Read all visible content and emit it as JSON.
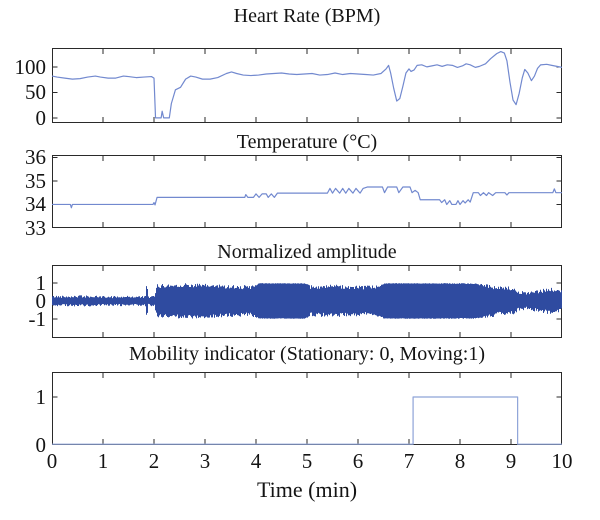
{
  "figure": {
    "xlabel": "Time (min)",
    "xlim": [
      0,
      10
    ],
    "x_ticks": [
      0,
      1,
      2,
      3,
      4,
      5,
      6,
      7,
      8,
      9,
      10
    ],
    "colors": {
      "background": "#ffffff",
      "axis": "#2a2a2a",
      "text": "#141414",
      "thin_line": "#7289cf",
      "mobility_line": "#8ea3d8",
      "dense_fill": "#2f4ba0"
    }
  },
  "chart_data": [
    {
      "id": "heart-rate",
      "type": "line",
      "title": "Heart Rate (BPM)",
      "ylim": [
        -10,
        137
      ],
      "yticks": [
        0,
        50,
        100
      ],
      "x": [
        0,
        0.1,
        0.25,
        0.4,
        0.55,
        0.7,
        0.85,
        0.95,
        1.1,
        1.25,
        1.4,
        1.5,
        1.65,
        1.8,
        1.95,
        2.0,
        2.03,
        2.14,
        2.16,
        2.19,
        2.3,
        2.34,
        2.42,
        2.52,
        2.62,
        2.72,
        2.82,
        2.95,
        3.1,
        3.25,
        3.42,
        3.52,
        3.62,
        3.75,
        3.9,
        4.05,
        4.2,
        4.35,
        4.5,
        4.65,
        4.8,
        4.95,
        5.1,
        5.25,
        5.4,
        5.55,
        5.7,
        5.85,
        6.0,
        6.15,
        6.3,
        6.45,
        6.55,
        6.6,
        6.64,
        6.7,
        6.76,
        6.82,
        6.88,
        6.94,
        7.0,
        7.04,
        7.1,
        7.16,
        7.25,
        7.35,
        7.45,
        7.55,
        7.65,
        7.75,
        7.85,
        7.95,
        8.05,
        8.12,
        8.2,
        8.3,
        8.38,
        8.5,
        8.6,
        8.72,
        8.8,
        8.87,
        8.92,
        8.98,
        9.04,
        9.1,
        9.16,
        9.22,
        9.27,
        9.33,
        9.4,
        9.46,
        9.52,
        9.58,
        9.7,
        9.8,
        9.9,
        10
      ],
      "y": [
        82,
        80,
        78,
        76,
        77,
        80,
        82,
        80,
        78,
        78,
        82,
        81,
        79,
        80,
        81,
        78,
        0,
        0,
        13,
        0,
        0,
        28,
        55,
        60,
        76,
        82,
        80,
        76,
        76,
        79,
        87,
        90,
        87,
        84,
        83,
        84,
        86,
        87,
        88,
        86,
        85,
        86,
        87,
        84,
        85,
        88,
        85,
        87,
        86,
        85,
        84,
        87,
        96,
        103,
        88,
        58,
        33,
        38,
        62,
        88,
        96,
        91,
        94,
        103,
        104,
        100,
        102,
        104,
        101,
        104,
        103,
        99,
        102,
        106,
        104,
        99,
        101,
        106,
        116,
        126,
        130,
        127,
        112,
        70,
        35,
        26,
        48,
        78,
        95,
        88,
        73,
        82,
        97,
        104,
        105,
        103,
        101,
        99
      ]
    },
    {
      "id": "temperature",
      "type": "line",
      "title": "Temperature (°C)",
      "ylim": [
        33,
        36.1
      ],
      "yticks": [
        33,
        34,
        35,
        36
      ],
      "x": [
        0,
        0.36,
        0.38,
        0.4,
        1.98,
        2.0,
        2.02,
        2.06,
        3.78,
        3.8,
        3.84,
        3.95,
        4.0,
        4.06,
        4.12,
        4.2,
        4.24,
        4.3,
        4.36,
        4.42,
        5.4,
        5.45,
        5.5,
        5.56,
        5.64,
        5.7,
        5.76,
        5.82,
        5.9,
        5.96,
        6.04,
        6.1,
        6.18,
        6.48,
        6.52,
        6.58,
        6.76,
        6.8,
        6.88,
        7.02,
        7.06,
        7.12,
        7.18,
        7.22,
        7.6,
        7.64,
        7.7,
        7.74,
        7.8,
        7.84,
        7.92,
        7.96,
        8.0,
        8.06,
        8.1,
        8.16,
        8.2,
        8.26,
        8.36,
        8.4,
        8.46,
        8.52,
        8.56,
        8.64,
        8.7,
        8.88,
        8.92,
        8.96,
        9.82,
        9.85,
        9.88,
        10
      ],
      "y": [
        34,
        34,
        33.86,
        34,
        34,
        34.08,
        33.98,
        34.3,
        34.3,
        34.42,
        34.3,
        34.3,
        34.45,
        34.3,
        34.45,
        34.45,
        34.3,
        34.45,
        34.3,
        34.48,
        34.48,
        34.68,
        34.48,
        34.68,
        34.48,
        34.68,
        34.48,
        34.68,
        34.48,
        34.68,
        34.48,
        34.68,
        34.74,
        34.74,
        34.5,
        34.74,
        34.74,
        34.5,
        34.74,
        34.74,
        34.5,
        34.6,
        34.5,
        34.2,
        34.2,
        34.08,
        34.2,
        34.0,
        34.16,
        34.0,
        34.0,
        34.16,
        34.0,
        34.16,
        34.06,
        34.2,
        34.1,
        34.5,
        34.5,
        34.38,
        34.5,
        34.38,
        34.5,
        34.38,
        34.5,
        34.5,
        34.4,
        34.5,
        34.5,
        34.66,
        34.5,
        34.5
      ]
    },
    {
      "id": "normalized-amplitude",
      "type": "dense",
      "title": "Normalized amplitude",
      "ylim": [
        -2.08,
        2.02
      ],
      "yticks": [
        -1,
        0,
        1
      ],
      "envelope": {
        "t": [
          0,
          0.5,
          1.0,
          1.5,
          1.82,
          1.85,
          1.88,
          2.0,
          2.05,
          2.6,
          3.2,
          3.9,
          4.05,
          4.95,
          5.05,
          5.6,
          6.1,
          6.4,
          6.5,
          7.5,
          8.3,
          8.6,
          9.0,
          9.15,
          9.3,
          9.55,
          9.75,
          9.9,
          10
        ],
        "amplitude": [
          0.3,
          0.33,
          0.28,
          0.3,
          0.28,
          1.0,
          0.28,
          0.3,
          0.95,
          1.0,
          0.95,
          0.88,
          1.0,
          1.0,
          0.88,
          0.92,
          0.85,
          0.9,
          1.0,
          1.0,
          1.0,
          0.92,
          0.8,
          0.6,
          0.5,
          0.65,
          0.75,
          0.7,
          0.62
        ],
        "solidness": [
          0.2,
          0.2,
          0.2,
          0.2,
          0.2,
          0.9,
          0.2,
          0.2,
          0.55,
          0.6,
          0.55,
          0.5,
          0.95,
          0.95,
          0.5,
          0.55,
          0.5,
          0.55,
          0.95,
          0.95,
          0.9,
          0.5,
          0.35,
          0.3,
          0.3,
          0.35,
          0.4,
          0.35,
          0.3
        ]
      }
    },
    {
      "id": "mobility",
      "type": "line",
      "title": "Mobility indicator (Stationary: 0, Moving:1)",
      "ylim": [
        0,
        1.52
      ],
      "yticks": [
        0,
        1
      ],
      "x": [
        0,
        7.08,
        7.08,
        9.13,
        9.13,
        10
      ],
      "y": [
        0,
        0,
        1,
        1,
        0,
        0
      ]
    }
  ]
}
